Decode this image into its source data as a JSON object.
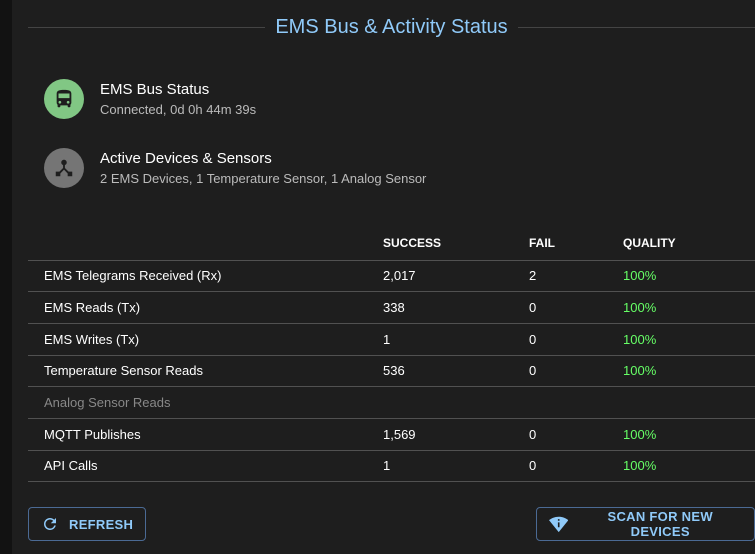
{
  "title": "EMS Bus & Activity Status",
  "status_items": [
    {
      "title": "EMS Bus Status",
      "subtitle": "Connected, 0d 0h 44m 39s",
      "icon": "bus-icon",
      "color": "#81c784"
    },
    {
      "title": "Active Devices & Sensors",
      "subtitle": "2 EMS Devices, 1 Temperature Sensor, 1 Analog Sensor",
      "icon": "device-hub-icon",
      "color": "#757575"
    }
  ],
  "table": {
    "headers": [
      "",
      "SUCCESS",
      "FAIL",
      "QUALITY"
    ],
    "rows": [
      {
        "label": "EMS Telegrams Received (Rx)",
        "success": "2,017",
        "fail": "2",
        "quality": "100%"
      },
      {
        "label": "EMS Reads (Tx)",
        "success": "338",
        "fail": "0",
        "quality": "100%"
      },
      {
        "label": "EMS Writes (Tx)",
        "success": "1",
        "fail": "0",
        "quality": "100%"
      },
      {
        "label": "Temperature Sensor Reads",
        "success": "536",
        "fail": "0",
        "quality": "100%"
      },
      {
        "label": "Analog Sensor Reads",
        "success": "",
        "fail": "",
        "quality": ""
      },
      {
        "label": "MQTT Publishes",
        "success": "1,569",
        "fail": "0",
        "quality": "100%"
      },
      {
        "label": "API Calls",
        "success": "1",
        "fail": "0",
        "quality": "100%"
      }
    ]
  },
  "buttons": {
    "refresh": "REFRESH",
    "scan": "SCAN FOR NEW DEVICES"
  },
  "colors": {
    "accent": "#90caf9",
    "quality": "#66ff66"
  }
}
